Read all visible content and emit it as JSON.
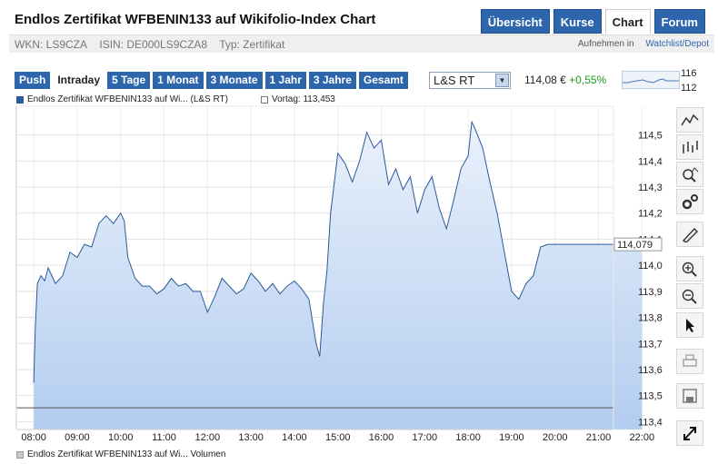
{
  "page": {
    "title": "Endlos Zertifikat WFBENIN133 auf Wikifolio-Index Chart"
  },
  "nav": {
    "tabs": [
      {
        "label": "Übersicht",
        "active": false
      },
      {
        "label": "Kurse",
        "active": false
      },
      {
        "label": "Chart",
        "active": true
      },
      {
        "label": "Forum",
        "active": false
      }
    ]
  },
  "meta": {
    "wkn": "WKN: LS9CZA",
    "isin": "ISIN: DE000LS9CZA8",
    "typ": "Typ: Zertifikat",
    "watch_prefix": "Aufnehmen in ",
    "watch_link": "Watchlist/Depot"
  },
  "toolbar": {
    "ranges": [
      {
        "label": "Push",
        "active": false
      },
      {
        "label": "Intraday",
        "active": true
      },
      {
        "label": "5 Tage",
        "active": false
      },
      {
        "label": "1 Monat",
        "active": false
      },
      {
        "label": "3 Monate",
        "active": false
      },
      {
        "label": "1 Jahr",
        "active": false
      },
      {
        "label": "3 Jahre",
        "active": false
      },
      {
        "label": "Gesamt",
        "active": false
      }
    ]
  },
  "exchange": {
    "selected": "L&S RT"
  },
  "quote": {
    "price": "114,08 €",
    "change": "+0,55%",
    "change_color": "#1f9a1f"
  },
  "mini_chart": {
    "high_label": "116",
    "low_label": "112"
  },
  "legend": {
    "series": "Endlos Zertifikat WFBENIN133 auf Wi... (L&S RT)",
    "previous": "Vortag: 113,453",
    "volume": "Endlos Zertifikat WFBENIN133 auf Wi... Volumen"
  },
  "chart_data": {
    "type": "area",
    "title": "",
    "xlabel": "",
    "ylabel": "",
    "x_ticks": [
      "08:00",
      "09:00",
      "10:00",
      "11:00",
      "12:00",
      "13:00",
      "14:00",
      "15:00",
      "16:00",
      "17:00",
      "18:00",
      "19:00",
      "20:00",
      "21:00",
      "22:00"
    ],
    "y_ticks": [
      "114,5",
      "114,4",
      "114,3",
      "114,2",
      "114,1",
      "114,0",
      "113,9",
      "113,8",
      "113,7",
      "113,6",
      "113,5",
      "113,4"
    ],
    "ylim": [
      113.37,
      114.61
    ],
    "xlim": [
      "07:36",
      "22:36"
    ],
    "previous_close": 113.453,
    "last_value_label": "114,079",
    "series": [
      {
        "x": [
          "08:00",
          "08:02",
          "08:05",
          "08:10",
          "08:15",
          "08:20",
          "08:30",
          "08:40",
          "08:50",
          "09:00",
          "09:10",
          "09:20",
          "09:30",
          "09:40",
          "09:50",
          "10:00",
          "10:05",
          "10:10",
          "10:20",
          "10:30",
          "10:40",
          "10:50",
          "11:00",
          "11:10",
          "11:20",
          "11:30",
          "11:40",
          "11:50",
          "12:00",
          "12:10",
          "12:20",
          "12:30",
          "12:40",
          "12:50",
          "13:00",
          "13:10",
          "13:20",
          "13:30",
          "13:40",
          "13:50",
          "14:00",
          "14:10",
          "14:20",
          "14:30",
          "14:35",
          "14:40",
          "14:45",
          "14:50",
          "15:00",
          "15:10",
          "15:20",
          "15:30",
          "15:40",
          "15:50",
          "16:00",
          "16:10",
          "16:20",
          "16:30",
          "16:40",
          "16:50",
          "17:00",
          "17:10",
          "17:20",
          "17:30",
          "17:40",
          "17:50",
          "18:00",
          "18:05",
          "18:10",
          "18:20",
          "18:30",
          "18:40",
          "18:50",
          "19:00",
          "19:10",
          "19:20",
          "19:30",
          "19:40",
          "19:50",
          "20:00",
          "21:00",
          "22:00",
          "22:36"
        ],
        "values": [
          113.55,
          113.75,
          113.93,
          113.96,
          113.94,
          113.99,
          113.93,
          113.96,
          114.05,
          114.03,
          114.08,
          114.07,
          114.16,
          114.19,
          114.16,
          114.2,
          114.17,
          114.03,
          113.95,
          113.92,
          113.92,
          113.89,
          113.91,
          113.95,
          113.92,
          113.93,
          113.9,
          113.9,
          113.82,
          113.88,
          113.95,
          113.92,
          113.89,
          113.91,
          113.97,
          113.94,
          113.9,
          113.93,
          113.89,
          113.92,
          113.94,
          113.91,
          113.87,
          113.7,
          113.65,
          113.85,
          113.98,
          114.2,
          114.43,
          114.39,
          114.32,
          114.4,
          114.51,
          114.45,
          114.48,
          114.31,
          114.37,
          114.29,
          114.34,
          114.2,
          114.29,
          114.34,
          114.22,
          114.14,
          114.25,
          114.37,
          114.42,
          114.55,
          114.52,
          114.45,
          114.32,
          114.2,
          114.05,
          113.9,
          113.87,
          113.93,
          113.96,
          114.07,
          114.08,
          114.08,
          114.08,
          114.08,
          114.08
        ]
      }
    ]
  }
}
